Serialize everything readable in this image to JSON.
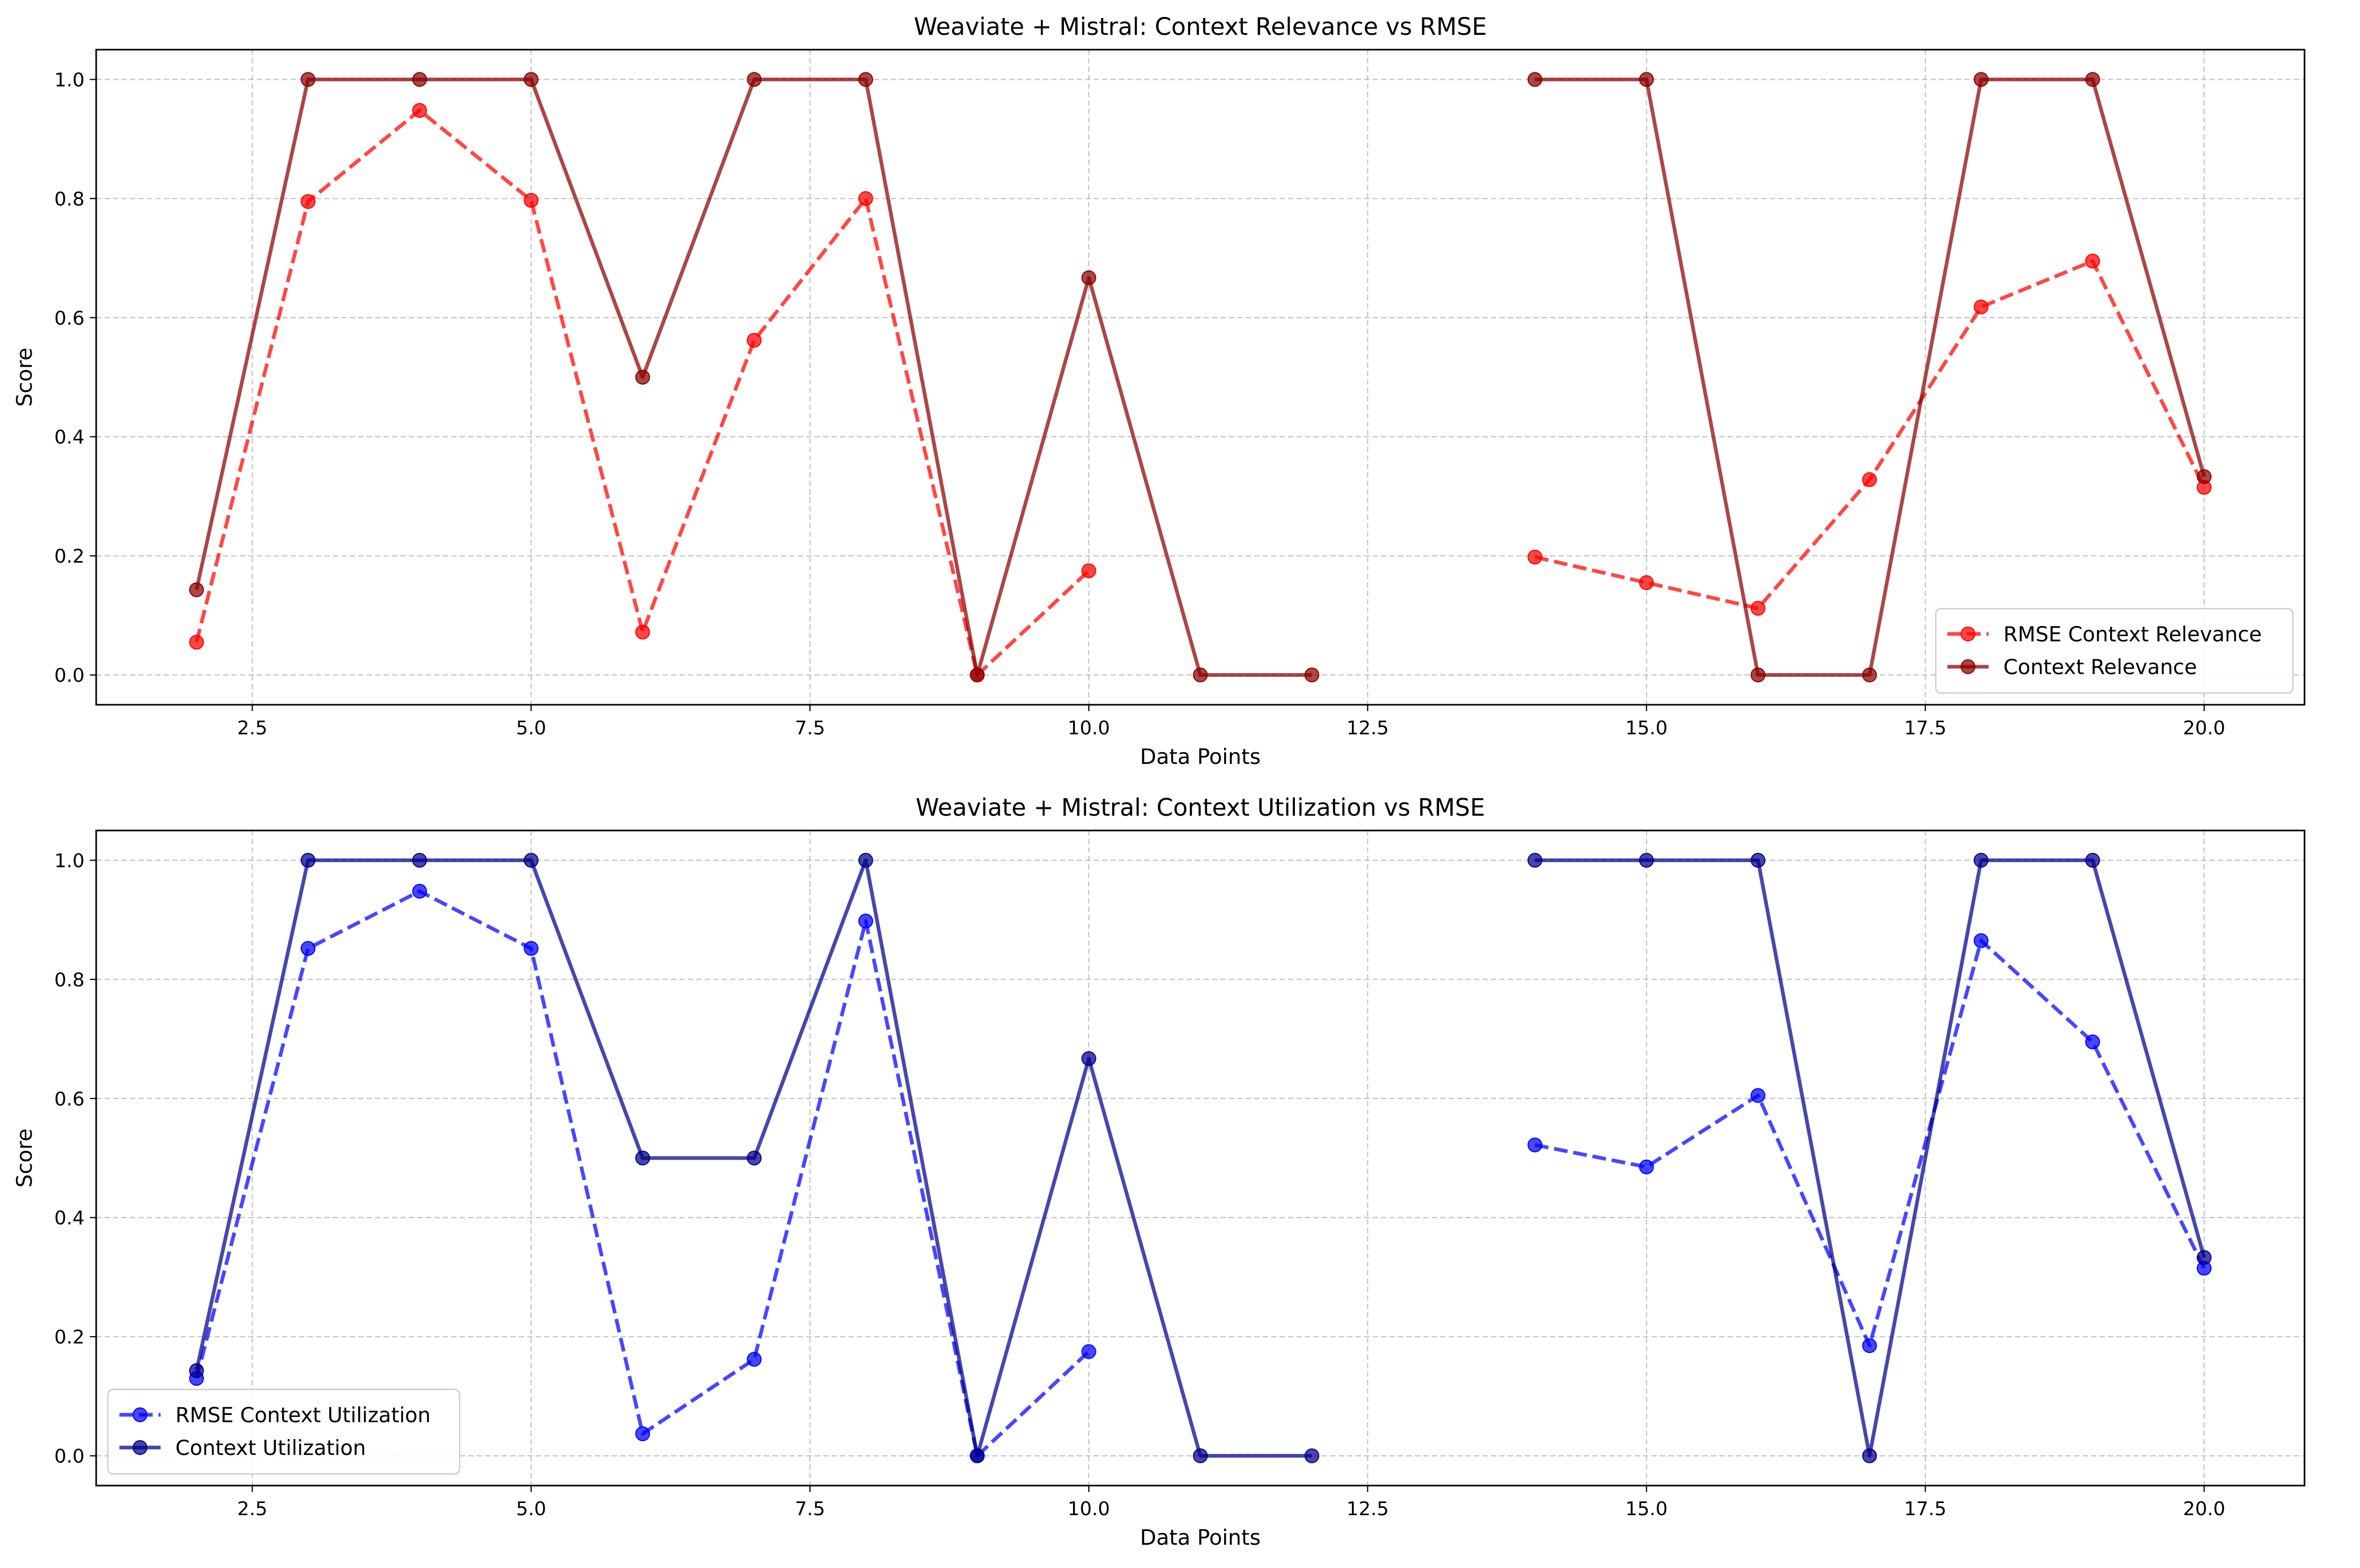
{
  "chart_data": [
    {
      "type": "line",
      "title": "Weaviate + Mistral: Context Relevance vs RMSE",
      "xlabel": "Data Points",
      "ylabel": "Score",
      "xlim": [
        1.1,
        20.9
      ],
      "ylim": [
        -0.05,
        1.05
      ],
      "xticks": [
        2.5,
        5.0,
        7.5,
        10.0,
        12.5,
        15.0,
        17.5,
        20.0
      ],
      "xtick_labels": [
        "2.5",
        "5.0",
        "7.5",
        "10.0",
        "12.5",
        "15.0",
        "17.5",
        "20.0"
      ],
      "yticks": [
        0.0,
        0.2,
        0.4,
        0.6,
        0.8,
        1.0
      ],
      "ytick_labels": [
        "0.0",
        "0.2",
        "0.4",
        "0.6",
        "0.8",
        "1.0"
      ],
      "grid": true,
      "legend_position": "lower-right",
      "x": [
        2,
        3,
        4,
        5,
        6,
        7,
        8,
        9,
        10,
        11,
        12,
        13,
        14,
        15,
        16,
        17,
        18,
        19,
        20
      ],
      "series": [
        {
          "name": "RMSE Context Relevance",
          "color": "#ff0000",
          "style": "dashed",
          "values": [
            0.055,
            0.795,
            0.948,
            0.797,
            0.072,
            0.562,
            0.8,
            0.0,
            0.175,
            null,
            null,
            null,
            0.198,
            0.155,
            0.112,
            0.328,
            0.618,
            0.695,
            0.315
          ]
        },
        {
          "name": "Context Relevance",
          "color": "#8b0000",
          "style": "solid",
          "values": [
            0.143,
            1.0,
            1.0,
            1.0,
            0.5,
            1.0,
            1.0,
            0.0,
            0.667,
            0.0,
            0.0,
            null,
            1.0,
            1.0,
            0.0,
            0.0,
            1.0,
            1.0,
            0.333
          ]
        }
      ]
    },
    {
      "type": "line",
      "title": "Weaviate + Mistral: Context Utilization vs RMSE",
      "xlabel": "Data Points",
      "ylabel": "Score",
      "xlim": [
        1.1,
        20.9
      ],
      "ylim": [
        -0.05,
        1.05
      ],
      "xticks": [
        2.5,
        5.0,
        7.5,
        10.0,
        12.5,
        15.0,
        17.5,
        20.0
      ],
      "xtick_labels": [
        "2.5",
        "5.0",
        "7.5",
        "10.0",
        "12.5",
        "15.0",
        "17.5",
        "20.0"
      ],
      "yticks": [
        0.0,
        0.2,
        0.4,
        0.6,
        0.8,
        1.0
      ],
      "ytick_labels": [
        "0.0",
        "0.2",
        "0.4",
        "0.6",
        "0.8",
        "1.0"
      ],
      "grid": true,
      "legend_position": "lower-left",
      "x": [
        2,
        3,
        4,
        5,
        6,
        7,
        8,
        9,
        10,
        11,
        12,
        13,
        14,
        15,
        16,
        17,
        18,
        19,
        20
      ],
      "series": [
        {
          "name": "RMSE Context Utilization",
          "color": "#0000ff",
          "style": "dashed",
          "values": [
            0.13,
            0.852,
            0.948,
            0.852,
            0.037,
            0.162,
            0.898,
            0.0,
            0.175,
            null,
            null,
            null,
            0.522,
            0.485,
            0.605,
            0.185,
            0.865,
            0.695,
            0.315
          ]
        },
        {
          "name": "Context Utilization",
          "color": "#00008b",
          "style": "solid",
          "values": [
            0.143,
            1.0,
            1.0,
            1.0,
            0.5,
            0.5,
            1.0,
            0.0,
            0.667,
            0.0,
            0.0,
            null,
            1.0,
            1.0,
            1.0,
            0.0,
            1.0,
            1.0,
            0.333
          ]
        }
      ]
    }
  ]
}
